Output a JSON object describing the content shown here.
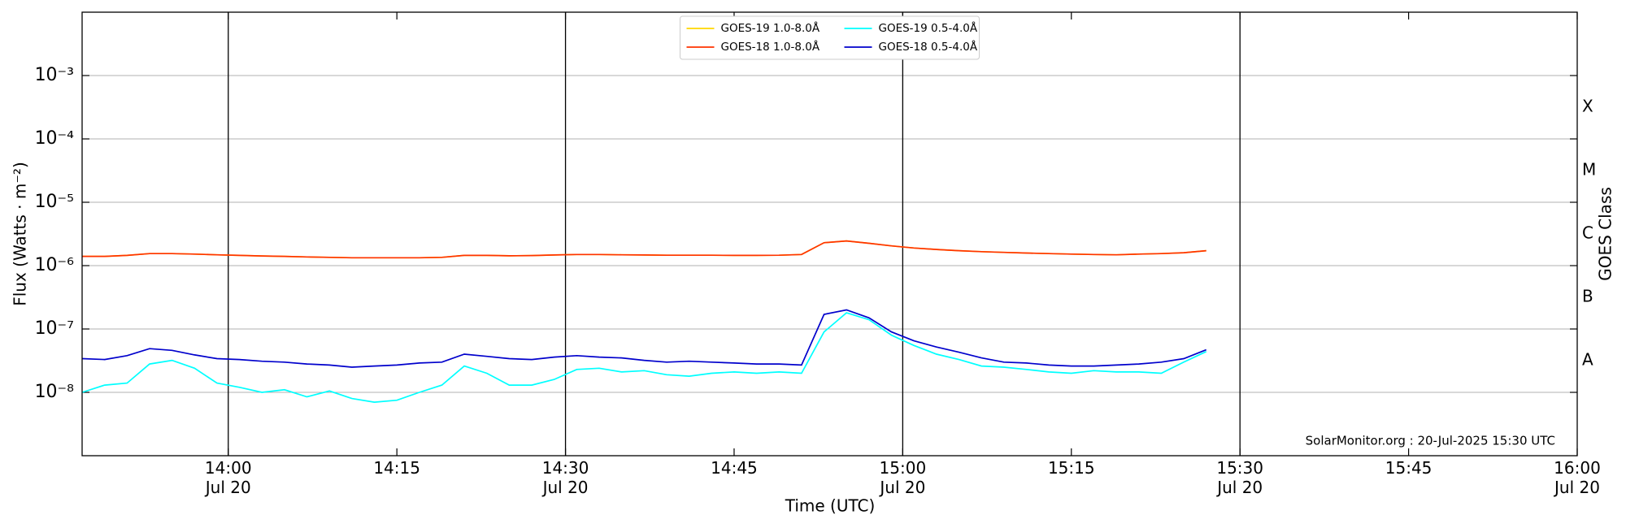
{
  "chart_data": {
    "type": "line",
    "xlabel": "Time (UTC)",
    "ylabel": "Flux (Watts · m⁻²)",
    "y2label": "GOES Class",
    "annotation": "SolarMonitor.org : 20-Jul-2025 15:30 UTC",
    "log_y": true,
    "grid": true,
    "legend": "upper center",
    "xlim": [
      "13:47",
      "16:00"
    ],
    "xticks": [
      {
        "value": "14:00",
        "label": "14:00\nJul 20"
      },
      "14:15",
      {
        "value": "14:30",
        "label": "14:30\nJul 20"
      },
      "14:45",
      {
        "value": "15:00",
        "label": "15:00\nJul 20"
      },
      "15:15",
      {
        "value": "15:30",
        "label": "15:30\nJul 20"
      },
      "15:45",
      {
        "value": "16:00",
        "label": "16:00\nJul 20"
      }
    ],
    "vlines": [
      "14:00",
      "14:30",
      "15:00",
      "15:30"
    ],
    "ylim": [
      1e-09,
      0.01
    ],
    "yticks": [
      {
        "value": 1e-08,
        "label": "10⁻⁸"
      },
      {
        "value": 1e-07,
        "label": "10⁻⁷"
      },
      {
        "value": 1e-06,
        "label": "10⁻⁶"
      },
      {
        "value": 1e-05,
        "label": "10⁻⁵"
      },
      {
        "value": 0.0001,
        "label": "10⁻⁴"
      },
      {
        "value": 0.001,
        "label": "10⁻³"
      }
    ],
    "y2lim": [
      1e-09,
      0.01
    ],
    "y2ticks": [
      {
        "value": 3.162e-08,
        "label": "A"
      },
      {
        "value": 3.162e-07,
        "label": "B"
      },
      {
        "value": 3.162e-06,
        "label": "C"
      },
      {
        "value": 3.162e-05,
        "label": "M"
      },
      {
        "value": 0.0003162,
        "label": "X"
      }
    ],
    "x": [
      "13:47",
      "13:49",
      "13:51",
      "13:53",
      "13:55",
      "13:57",
      "13:59",
      "14:01",
      "14:03",
      "14:05",
      "14:07",
      "14:09",
      "14:11",
      "14:13",
      "14:15",
      "14:17",
      "14:19",
      "14:21",
      "14:23",
      "14:25",
      "14:27",
      "14:29",
      "14:31",
      "14:33",
      "14:35",
      "14:37",
      "14:39",
      "14:41",
      "14:43",
      "14:45",
      "14:47",
      "14:49",
      "14:51",
      "14:53",
      "14:55",
      "14:57",
      "14:59",
      "15:01",
      "15:03",
      "15:05",
      "15:07",
      "15:09",
      "15:11",
      "15:13",
      "15:15",
      "15:17",
      "15:19",
      "15:21",
      "15:23",
      "15:25",
      "15:27"
    ],
    "series": [
      {
        "name": "GOES-19 1.0-8.0Å",
        "color": "#ffd700",
        "values": [
          1.4e-06,
          1.4e-06,
          1.45e-06,
          1.55e-06,
          1.55e-06,
          1.52e-06,
          1.48e-06,
          1.45e-06,
          1.42e-06,
          1.4e-06,
          1.37e-06,
          1.35e-06,
          1.33e-06,
          1.33e-06,
          1.33e-06,
          1.33e-06,
          1.35e-06,
          1.45e-06,
          1.45e-06,
          1.43e-06,
          1.44e-06,
          1.47e-06,
          1.5e-06,
          1.5e-06,
          1.48e-06,
          1.47e-06,
          1.46e-06,
          1.46e-06,
          1.46e-06,
          1.45e-06,
          1.45e-06,
          1.46e-06,
          1.5e-06,
          2.3e-06,
          2.45e-06,
          2.25e-06,
          2.05e-06,
          1.9e-06,
          1.8e-06,
          1.72e-06,
          1.66e-06,
          1.62e-06,
          1.58e-06,
          1.55e-06,
          1.52e-06,
          1.5e-06,
          1.48e-06,
          1.52e-06,
          1.55e-06,
          1.6e-06,
          1.72e-06
        ]
      },
      {
        "name": "GOES-18 1.0-8.0Å",
        "color": "#ff3300",
        "values": [
          1.4e-06,
          1.4e-06,
          1.45e-06,
          1.55e-06,
          1.55e-06,
          1.52e-06,
          1.48e-06,
          1.45e-06,
          1.42e-06,
          1.4e-06,
          1.37e-06,
          1.35e-06,
          1.33e-06,
          1.33e-06,
          1.33e-06,
          1.33e-06,
          1.35e-06,
          1.45e-06,
          1.45e-06,
          1.43e-06,
          1.44e-06,
          1.47e-06,
          1.5e-06,
          1.5e-06,
          1.48e-06,
          1.47e-06,
          1.46e-06,
          1.46e-06,
          1.46e-06,
          1.45e-06,
          1.45e-06,
          1.46e-06,
          1.5e-06,
          2.3e-06,
          2.45e-06,
          2.25e-06,
          2.05e-06,
          1.9e-06,
          1.8e-06,
          1.72e-06,
          1.66e-06,
          1.62e-06,
          1.58e-06,
          1.55e-06,
          1.52e-06,
          1.5e-06,
          1.48e-06,
          1.52e-06,
          1.55e-06,
          1.6e-06,
          1.72e-06
        ]
      },
      {
        "name": "GOES-19 0.5-4.0Å",
        "color": "#00ffff",
        "values": [
          1e-08,
          1.3e-08,
          1.4e-08,
          2.8e-08,
          3.2e-08,
          2.4e-08,
          1.4e-08,
          1.2e-08,
          1e-08,
          1.1e-08,
          8.5e-09,
          1.05e-08,
          8e-09,
          7e-09,
          7.5e-09,
          1e-08,
          1.3e-08,
          2.6e-08,
          2e-08,
          1.3e-08,
          1.3e-08,
          1.6e-08,
          2.3e-08,
          2.4e-08,
          2.1e-08,
          2.2e-08,
          1.9e-08,
          1.8e-08,
          2e-08,
          2.1e-08,
          2e-08,
          2.1e-08,
          2e-08,
          9e-08,
          1.8e-07,
          1.4e-07,
          8e-08,
          5.5e-08,
          4e-08,
          3.3e-08,
          2.6e-08,
          2.5e-08,
          2.3e-08,
          2.1e-08,
          2e-08,
          2.2e-08,
          2.1e-08,
          2.1e-08,
          2e-08,
          3e-08,
          4.4e-08
        ]
      },
      {
        "name": "GOES-18 0.5-4.0Å",
        "color": "#0000cc",
        "values": [
          3.4e-08,
          3.3e-08,
          3.8e-08,
          4.9e-08,
          4.6e-08,
          3.9e-08,
          3.4e-08,
          3.3e-08,
          3.1e-08,
          3e-08,
          2.8e-08,
          2.7e-08,
          2.5e-08,
          2.6e-08,
          2.7e-08,
          2.9e-08,
          3e-08,
          4e-08,
          3.7e-08,
          3.4e-08,
          3.3e-08,
          3.6e-08,
          3.8e-08,
          3.6e-08,
          3.5e-08,
          3.2e-08,
          3e-08,
          3.1e-08,
          3e-08,
          2.9e-08,
          2.8e-08,
          2.8e-08,
          2.7e-08,
          1.7e-07,
          2e-07,
          1.5e-07,
          9e-08,
          6.5e-08,
          5.2e-08,
          4.3e-08,
          3.5e-08,
          3e-08,
          2.9e-08,
          2.7e-08,
          2.6e-08,
          2.6e-08,
          2.7e-08,
          2.8e-08,
          3e-08,
          3.4e-08,
          4.7e-08
        ]
      }
    ]
  }
}
